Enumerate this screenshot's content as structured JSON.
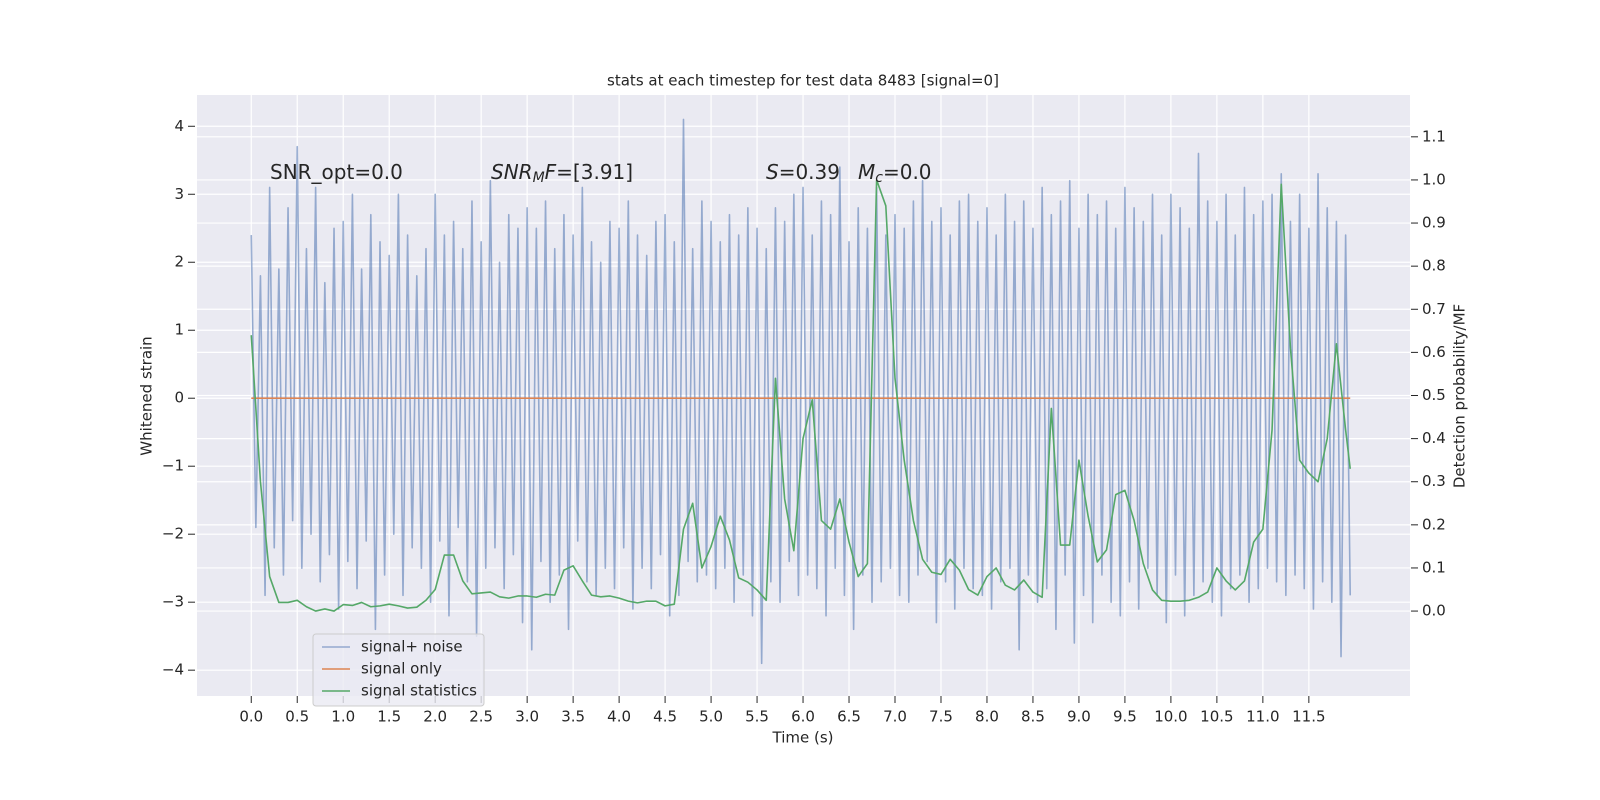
{
  "chart_data": {
    "type": "line",
    "title": "stats at each timestep for test data 8483 [signal=0]",
    "xlabel": "Time (s)",
    "ylabel": "Whitened strain",
    "y2label": "Detection probability/MF",
    "annotations": [
      {
        "parts": [
          {
            "text": "SNR_opt=0.0"
          }
        ]
      },
      {
        "parts": [
          {
            "text": "SNR",
            "italic": true
          },
          {
            "text": "M",
            "italic": true,
            "sub": true
          },
          {
            "text": "F",
            "italic": true
          },
          {
            "text": "=[3.91]"
          }
        ]
      },
      {
        "parts": [
          {
            "text": "S",
            "italic": true
          },
          {
            "text": "=0.39"
          }
        ]
      },
      {
        "parts": [
          {
            "text": "M",
            "italic": true
          },
          {
            "text": "c",
            "italic": true,
            "sub": true
          },
          {
            "text": "=0.0"
          }
        ]
      }
    ],
    "xlim": [
      -0.59,
      12.6
    ],
    "ylim": [
      -4.38,
      4.46
    ],
    "y2lim": [
      -0.197,
      1.197
    ],
    "xticks": [
      {
        "value": 0,
        "label": "0.0"
      },
      0.5,
      {
        "value": 1,
        "label": "1.0"
      },
      1.5,
      {
        "value": 2,
        "label": "2.0"
      },
      2.5,
      {
        "value": 3,
        "label": "3.0"
      },
      3.5,
      {
        "value": 4,
        "label": "4.0"
      },
      4.5,
      {
        "value": 5,
        "label": "5.0"
      },
      5.5,
      {
        "value": 6,
        "label": "6.0"
      },
      6.5,
      {
        "value": 7,
        "label": "7.0"
      },
      7.5,
      {
        "value": 8,
        "label": "8.0"
      },
      8.5,
      {
        "value": 9,
        "label": "9.0"
      },
      9.5,
      {
        "value": 10,
        "label": "10.0"
      },
      10.5,
      {
        "value": 11,
        "label": "11.0"
      },
      11.5
    ],
    "yticks": [
      {
        "value": -4,
        "label": "−4"
      },
      {
        "value": -3,
        "label": "−3"
      },
      {
        "value": -2,
        "label": "−2"
      },
      {
        "value": -1,
        "label": "−1"
      },
      0,
      1,
      2,
      3,
      4
    ],
    "y2ticks": [
      {
        "value": 0,
        "label": "0.0"
      },
      0.1,
      0.2,
      0.3,
      0.4,
      0.5,
      0.6,
      0.7,
      0.8,
      0.9,
      {
        "value": 1,
        "label": "1.0"
      },
      1.1
    ],
    "grid": true,
    "legend": "lower left",
    "series": [
      {
        "name": "signal+ noise",
        "color": "#4c72b0",
        "alpha": 0.55,
        "x": [
          0,
          0.05,
          0.1,
          0.15,
          0.2,
          0.25,
          0.3,
          0.35,
          0.4,
          0.45,
          0.5,
          0.55,
          0.6,
          0.65,
          0.7,
          0.75,
          0.8,
          0.85,
          0.9,
          0.95,
          1,
          1.05,
          1.1,
          1.15,
          1.2,
          1.25,
          1.3,
          1.35,
          1.4,
          1.45,
          1.5,
          1.55,
          1.6,
          1.65,
          1.7,
          1.75,
          1.8,
          1.85,
          1.9,
          1.95,
          2,
          2.05,
          2.1,
          2.15,
          2.2,
          2.25,
          2.3,
          2.35,
          2.4,
          2.45,
          2.5,
          2.55,
          2.6,
          2.65,
          2.7,
          2.75,
          2.8,
          2.85,
          2.9,
          2.95,
          3,
          3.05,
          3.1,
          3.15,
          3.2,
          3.25,
          3.3,
          3.35,
          3.4,
          3.45,
          3.5,
          3.55,
          3.6,
          3.65,
          3.7,
          3.75,
          3.8,
          3.85,
          3.9,
          3.95,
          4,
          4.05,
          4.1,
          4.15,
          4.2,
          4.25,
          4.3,
          4.35,
          4.4,
          4.45,
          4.5,
          4.55,
          4.6,
          4.65,
          4.7,
          4.75,
          4.8,
          4.85,
          4.9,
          4.95,
          5,
          5.05,
          5.1,
          5.15,
          5.2,
          5.25,
          5.3,
          5.35,
          5.4,
          5.45,
          5.5,
          5.55,
          5.6,
          5.65,
          5.7,
          5.75,
          5.8,
          5.85,
          5.9,
          5.95,
          6,
          6.05,
          6.1,
          6.15,
          6.2,
          6.25,
          6.3,
          6.35,
          6.4,
          6.45,
          6.5,
          6.55,
          6.6,
          6.65,
          6.7,
          6.75,
          6.8,
          6.85,
          6.9,
          6.95,
          7,
          7.05,
          7.1,
          7.15,
          7.2,
          7.25,
          7.3,
          7.35,
          7.4,
          7.45,
          7.5,
          7.55,
          7.6,
          7.65,
          7.7,
          7.75,
          7.8,
          7.85,
          7.9,
          7.95,
          8,
          8.05,
          8.1,
          8.15,
          8.2,
          8.25,
          8.3,
          8.35,
          8.4,
          8.45,
          8.5,
          8.55,
          8.6,
          8.65,
          8.7,
          8.75,
          8.8,
          8.85,
          8.9,
          8.95,
          9,
          9.05,
          9.1,
          9.15,
          9.2,
          9.25,
          9.3,
          9.35,
          9.4,
          9.45,
          9.5,
          9.55,
          9.6,
          9.65,
          9.7,
          9.75,
          9.8,
          9.85,
          9.9,
          9.95,
          10,
          10.05,
          10.1,
          10.15,
          10.2,
          10.25,
          10.3,
          10.35,
          10.4,
          10.45,
          10.5,
          10.55,
          10.6,
          10.65,
          10.7,
          10.75,
          10.8,
          10.85,
          10.9,
          10.95,
          11,
          11.05,
          11.1,
          11.15,
          11.2,
          11.25,
          11.3,
          11.35,
          11.4,
          11.45,
          11.5,
          11.55,
          11.6,
          11.65,
          11.7,
          11.75,
          11.8,
          11.85,
          11.9,
          11.95
        ],
        "values": [
          2.4,
          -1.9,
          1.8,
          -2.9,
          3.1,
          -2.2,
          1.9,
          -2.6,
          2.8,
          -1.8,
          3.7,
          -2.5,
          2.2,
          -2.0,
          3.1,
          -2.7,
          1.7,
          -2.3,
          2.5,
          -3.1,
          2.6,
          -2.4,
          3.0,
          -2.8,
          1.9,
          -2.1,
          2.7,
          -3.4,
          2.3,
          -2.6,
          2.1,
          -2.0,
          3.0,
          -2.9,
          2.4,
          -2.2,
          1.8,
          -2.5,
          2.2,
          -3.0,
          3.0,
          -2.1,
          2.4,
          -3.2,
          2.6,
          -1.9,
          2.2,
          -2.7,
          2.9,
          -3.5,
          2.3,
          -2.5,
          3.2,
          -2.2,
          2.0,
          -2.8,
          2.7,
          -2.3,
          2.5,
          -3.3,
          2.8,
          -3.7,
          2.5,
          -2.4,
          2.9,
          -3.0,
          2.2,
          -2.6,
          2.7,
          -3.4,
          2.4,
          -2.1,
          3.1,
          -2.7,
          2.3,
          -2.9,
          2.0,
          -2.5,
          2.6,
          -2.8,
          2.5,
          -2.2,
          2.9,
          -3.1,
          2.4,
          -2.5,
          2.1,
          -2.8,
          2.6,
          -2.3,
          2.7,
          -3.2,
          2.3,
          -2.9,
          4.1,
          -2.4,
          2.2,
          -2.7,
          2.9,
          -2.6,
          2.6,
          -2.8,
          2.3,
          -2.5,
          2.7,
          -3.0,
          2.4,
          -2.6,
          2.8,
          -3.2,
          2.5,
          -3.9,
          2.2,
          -2.7,
          2.8,
          -3.0,
          2.6,
          -2.4,
          3.0,
          -2.9,
          3.1,
          -2.6,
          2.4,
          -2.8,
          2.9,
          -3.2,
          2.7,
          -2.5,
          3.4,
          -2.9,
          2.3,
          -3.4,
          2.8,
          -2.6,
          2.5,
          -3.0,
          3.1,
          -2.7,
          2.4,
          -2.5,
          2.7,
          -2.9,
          2.5,
          -3.0,
          2.9,
          -2.6,
          3.2,
          -2.4,
          2.6,
          -3.3,
          2.8,
          -2.7,
          2.4,
          -3.1,
          2.9,
          -2.5,
          3.0,
          -2.8,
          2.6,
          -2.9,
          2.8,
          -3.1,
          2.4,
          -2.7,
          3.0,
          -2.5,
          2.6,
          -3.7,
          2.9,
          -2.6,
          2.5,
          -3.0,
          3.1,
          -2.8,
          2.7,
          -3.4,
          2.9,
          -2.6,
          3.2,
          -3.6,
          2.5,
          -2.9,
          3.0,
          -3.3,
          2.7,
          -2.6,
          2.9,
          -3.0,
          2.5,
          -3.2,
          3.1,
          -2.7,
          2.8,
          -3.1,
          2.6,
          -2.5,
          3.0,
          -2.9,
          2.4,
          -3.3,
          3.0,
          -2.6,
          2.8,
          -3.2,
          2.5,
          -2.9,
          3.6,
          -2.7,
          2.9,
          -3.0,
          2.6,
          -3.2,
          3.0,
          -2.8,
          2.4,
          -2.6,
          3.1,
          -3.0,
          2.7,
          -2.8,
          2.9,
          -2.5,
          3.0,
          -2.7,
          3.3,
          -2.9,
          2.6,
          -2.6,
          3.0,
          -2.8,
          2.5,
          -3.1,
          3.3,
          -2.7,
          2.8,
          -3.0,
          2.6,
          -3.8,
          2.4,
          -2.9
        ]
      },
      {
        "name": "signal only",
        "color": "#dd8452",
        "x": [
          0,
          11.95
        ],
        "values": [
          0,
          0
        ]
      },
      {
        "name": "signal statistics",
        "color": "#55a868",
        "axis": "y2",
        "x": [
          0,
          0.1,
          0.2,
          0.3,
          0.4,
          0.5,
          0.6,
          0.7,
          0.8,
          0.9,
          1,
          1.1,
          1.2,
          1.3,
          1.4,
          1.5,
          1.6,
          1.7,
          1.8,
          1.9,
          2,
          2.1,
          2.2,
          2.3,
          2.4,
          2.5,
          2.6,
          2.7,
          2.8,
          2.9,
          3,
          3.1,
          3.2,
          3.3,
          3.4,
          3.5,
          3.6,
          3.7,
          3.8,
          3.9,
          4,
          4.1,
          4.2,
          4.3,
          4.4,
          4.5,
          4.6,
          4.7,
          4.8,
          4.9,
          5,
          5.1,
          5.2,
          5.3,
          5.4,
          5.5,
          5.6,
          5.7,
          5.8,
          5.9,
          6,
          6.1,
          6.2,
          6.3,
          6.4,
          6.5,
          6.6,
          6.7,
          6.8,
          6.9,
          7,
          7.1,
          7.2,
          7.3,
          7.4,
          7.5,
          7.6,
          7.7,
          7.8,
          7.9,
          8,
          8.1,
          8.2,
          8.3,
          8.4,
          8.5,
          8.6,
          8.7,
          8.8,
          8.9,
          9,
          9.1,
          9.2,
          9.3,
          9.4,
          9.5,
          9.6,
          9.7,
          9.8,
          9.9,
          10,
          10.1,
          10.2,
          10.3,
          10.4,
          10.5,
          10.6,
          10.7,
          10.8,
          10.9,
          11,
          11.1,
          11.2,
          11.3,
          11.4,
          11.5,
          11.6,
          11.7,
          11.8,
          11.9,
          11.95
        ],
        "values": [
          0.64,
          0.3,
          0.08,
          0.02,
          0.02,
          0.025,
          0.01,
          0.0,
          0.005,
          0.0,
          0.015,
          0.013,
          0.02,
          0.01,
          0.012,
          0.016,
          0.012,
          0.007,
          0.009,
          0.025,
          0.05,
          0.13,
          0.13,
          0.07,
          0.04,
          0.042,
          0.044,
          0.033,
          0.03,
          0.035,
          0.035,
          0.032,
          0.039,
          0.037,
          0.095,
          0.105,
          0.07,
          0.037,
          0.033,
          0.035,
          0.03,
          0.023,
          0.019,
          0.023,
          0.023,
          0.012,
          0.016,
          0.19,
          0.25,
          0.1,
          0.15,
          0.22,
          0.165,
          0.077,
          0.067,
          0.049,
          0.025,
          0.54,
          0.26,
          0.14,
          0.4,
          0.49,
          0.21,
          0.19,
          0.26,
          0.16,
          0.08,
          0.11,
          1.0,
          0.94,
          0.54,
          0.35,
          0.21,
          0.12,
          0.09,
          0.085,
          0.12,
          0.095,
          0.05,
          0.037,
          0.08,
          0.1,
          0.06,
          0.049,
          0.072,
          0.044,
          0.032,
          0.47,
          0.153,
          0.153,
          0.35,
          0.22,
          0.114,
          0.142,
          0.27,
          0.28,
          0.21,
          0.11,
          0.049,
          0.025,
          0.023,
          0.023,
          0.025,
          0.032,
          0.044,
          0.1,
          0.07,
          0.049,
          0.07,
          0.16,
          0.19,
          0.42,
          0.99,
          0.61,
          0.35,
          0.32,
          0.3,
          0.4,
          0.62,
          0.42,
          0.33
        ]
      }
    ]
  }
}
